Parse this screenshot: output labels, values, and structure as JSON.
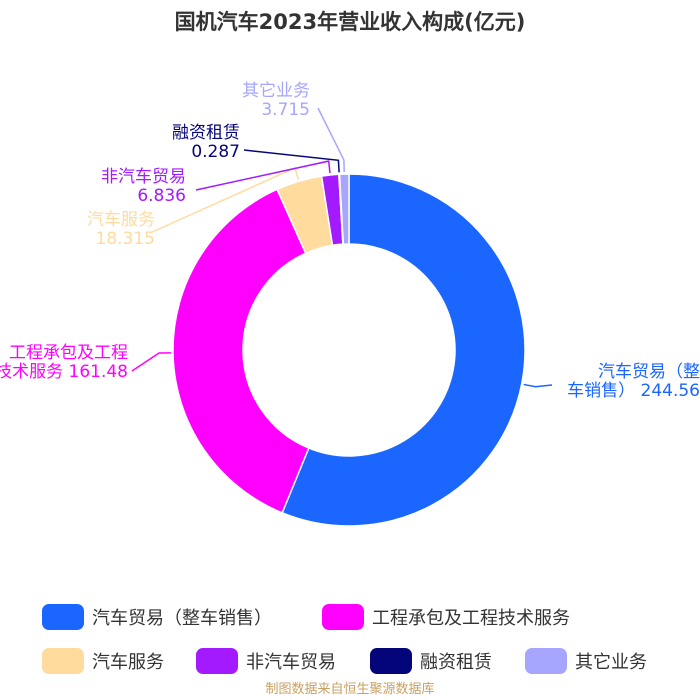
{
  "chart_data": {
    "type": "pie",
    "title": "国机汽车2023年营业收入构成(亿元)",
    "slices": [
      {
        "name": "汽车贸易（整车销售）",
        "value": 244.56,
        "value_label": "244.56",
        "label_lines": [
          "汽车贸易（整",
          "车销售） 244.56"
        ],
        "color": "#1a66ff"
      },
      {
        "name": "工程承包及工程技术服务",
        "value": 161.48,
        "value_label": "161.48",
        "label_lines": [
          "工程承包及工程",
          "技术服务 161.48"
        ],
        "color": "#ff00ff"
      },
      {
        "name": "汽车服务",
        "value": 18.315,
        "value_label": "18.315",
        "label_lines": [
          "汽车服务",
          "18.315"
        ],
        "color": "#ffdb9e"
      },
      {
        "name": "非汽车贸易",
        "value": 6.836,
        "value_label": "6.836",
        "label_lines": [
          "非汽车贸易",
          "6.836"
        ],
        "color": "#a31aff"
      },
      {
        "name": "融资租赁",
        "value": 0.287,
        "value_label": "0.287",
        "label_lines": [
          "融资租赁",
          "0.287"
        ],
        "color": "#05057a"
      },
      {
        "name": "其它业务",
        "value": 3.715,
        "value_label": "3.715",
        "label_lines": [
          "其它业务",
          "3.715"
        ],
        "color": "#a6a6ff"
      }
    ],
    "legend_position": "bottom"
  },
  "source_note": "制图数据来自恒生聚源数据库"
}
